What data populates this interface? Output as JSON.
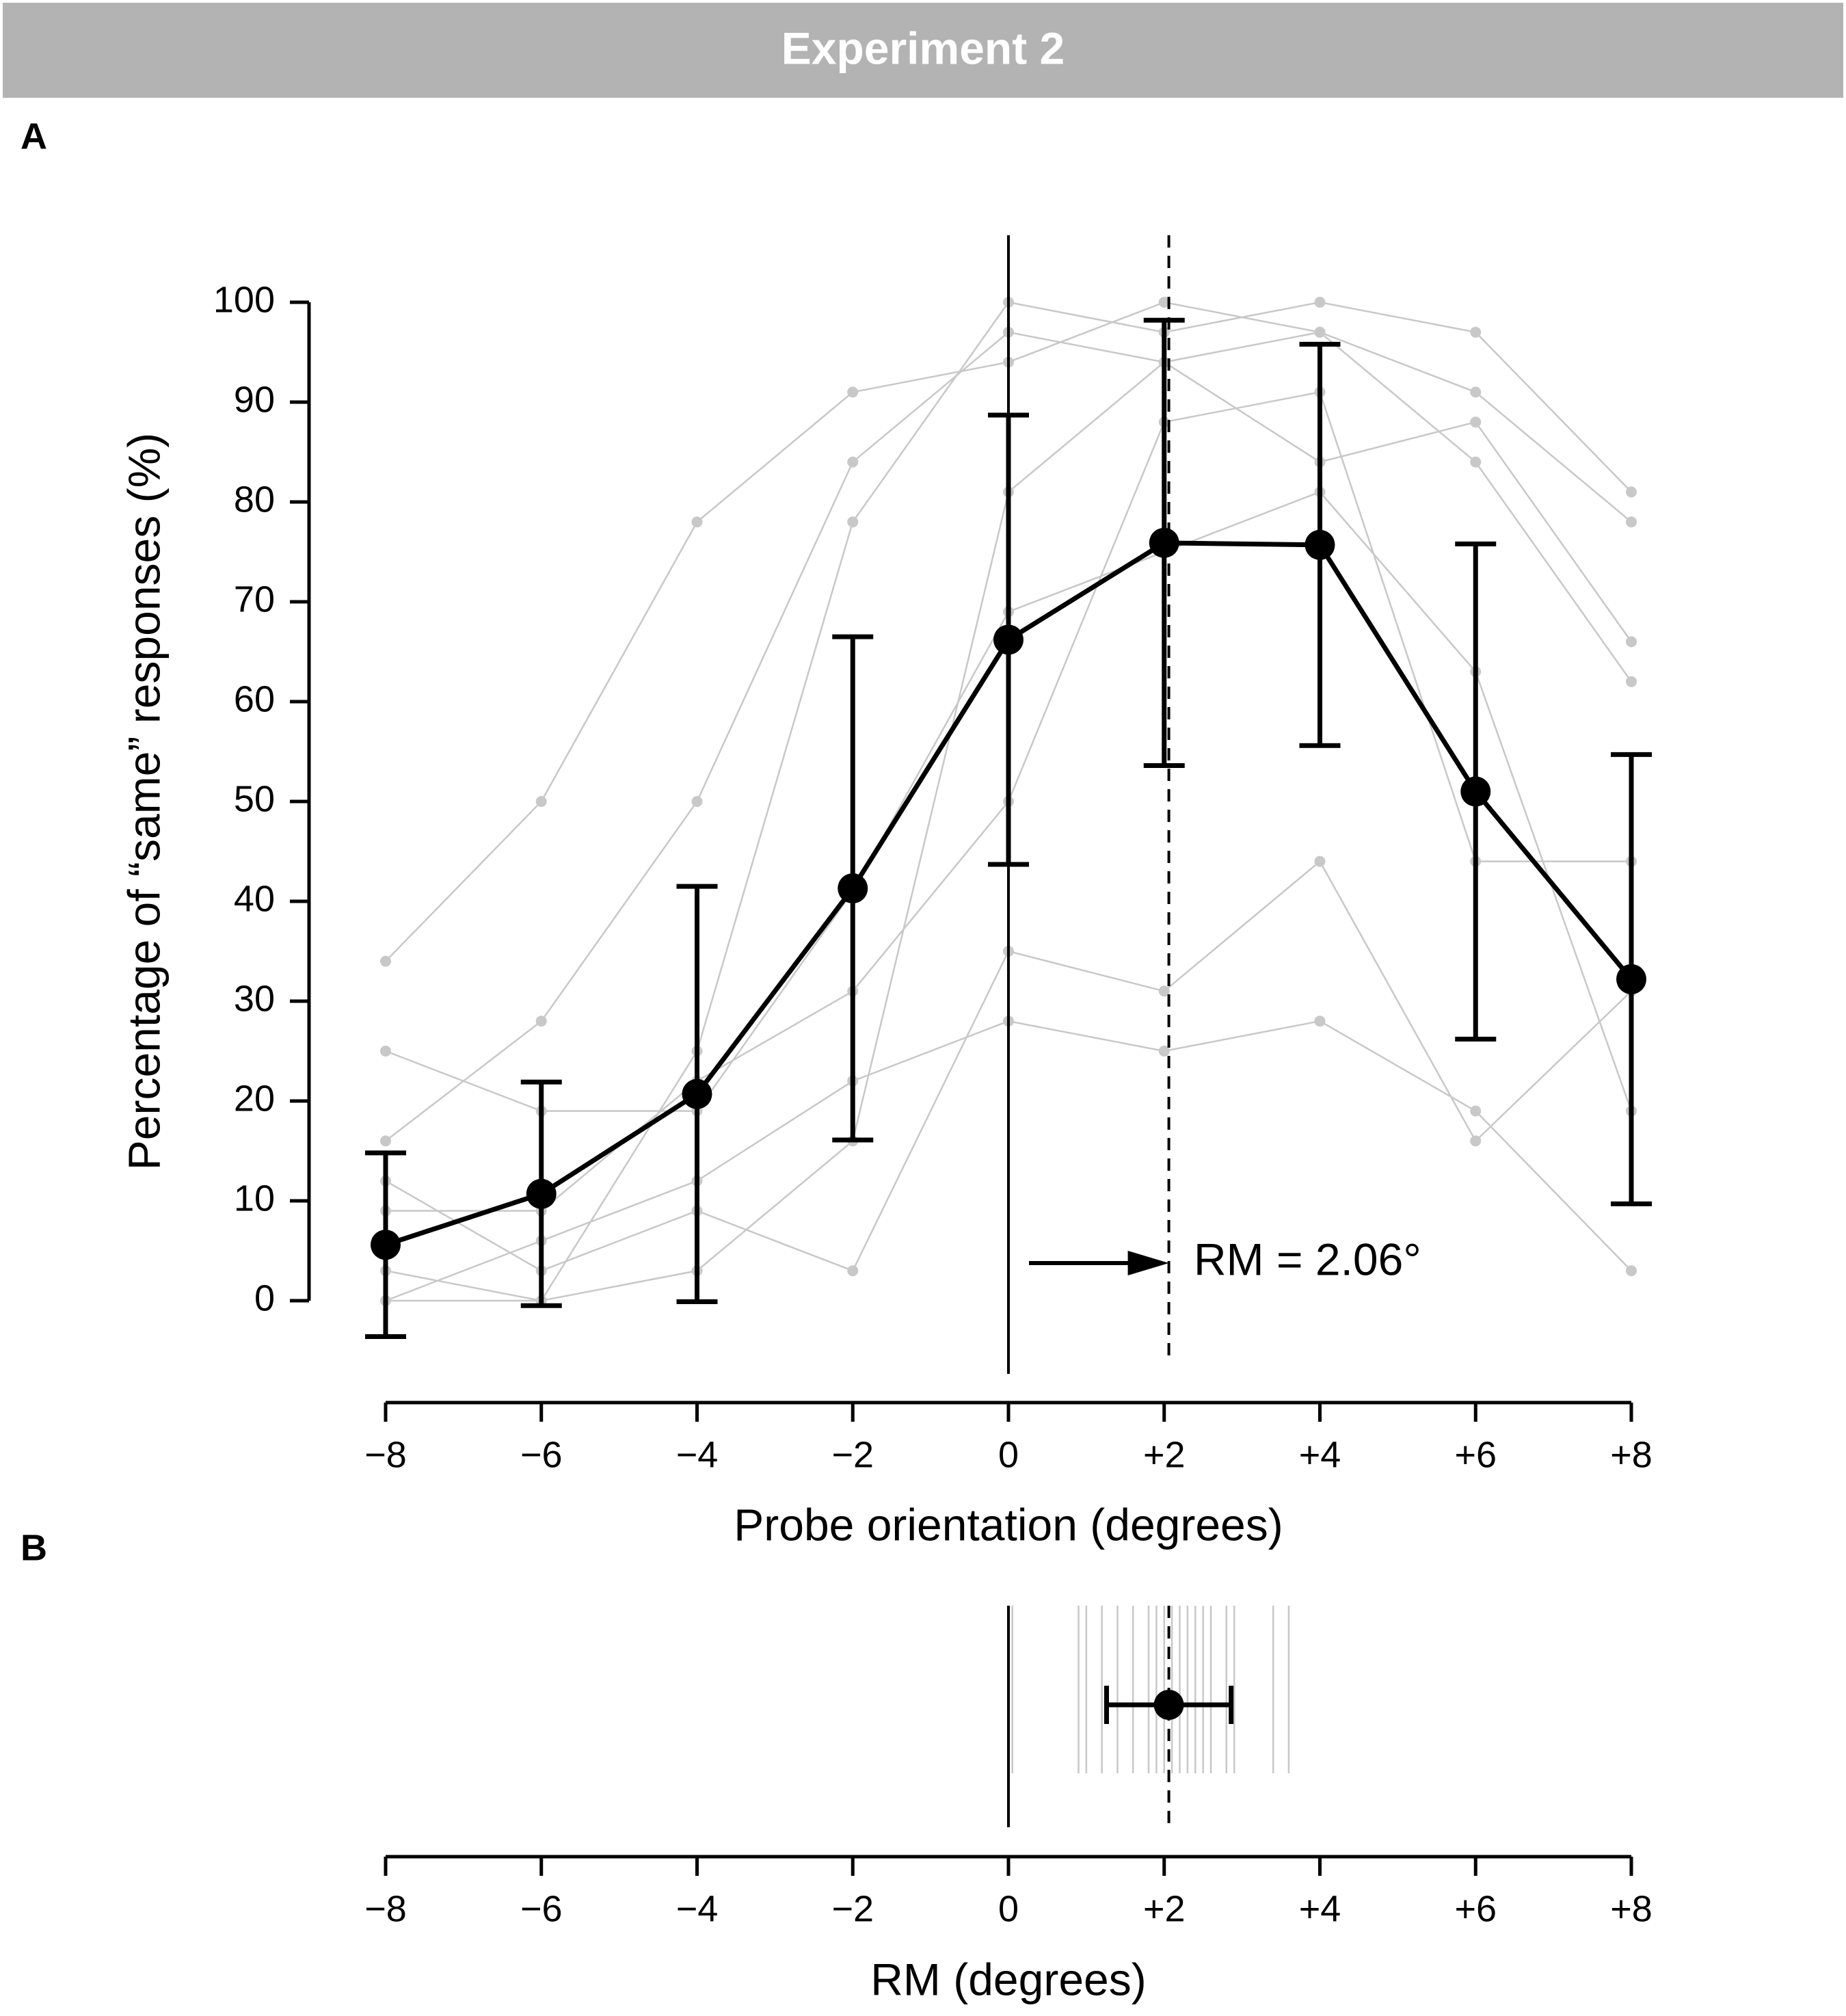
{
  "header": {
    "title": "Experiment 2"
  },
  "chart_data": [
    {
      "type": "line",
      "panel": "A",
      "x": [
        -8,
        -6,
        -4,
        -2,
        0,
        2,
        4,
        6,
        8
      ],
      "values": [
        5.6,
        10.7,
        20.7,
        41.3,
        66.2,
        75.9,
        75.7,
        51.0,
        32.2
      ],
      "errors": [
        9.2,
        11.2,
        20.8,
        25.2,
        22.5,
        22.3,
        20.1,
        24.8,
        22.5
      ],
      "color": "#000000",
      "individual": [
        [
          0,
          0,
          25,
          78,
          100,
          97,
          100,
          97,
          81
        ],
        [
          34,
          50,
          78,
          91,
          94,
          100,
          97,
          91,
          78
        ],
        [
          16,
          28,
          50,
          84,
          97,
          94,
          84,
          88,
          66
        ],
        [
          0,
          6,
          12,
          22,
          28,
          25,
          28,
          19,
          3
        ],
        [
          9,
          9,
          22,
          31,
          50,
          88,
          91,
          44,
          44
        ],
        [
          25,
          19,
          19,
          41,
          69,
          75,
          81,
          63,
          19
        ],
        [
          3,
          0,
          3,
          16,
          81,
          94,
          97,
          84,
          62
        ],
        [
          12,
          3,
          9,
          3,
          35,
          31,
          44,
          16,
          31
        ]
      ],
      "individual_color": "#c8c8c8",
      "rm": 2.06,
      "annotation": "RM = 2.06°",
      "xlabel": "Probe orientation (degrees)",
      "ylabel": "Percentage of “same” responses (%)",
      "xlim": [
        -8,
        8
      ],
      "ylim": [
        0,
        100
      ],
      "xticks": [
        {
          "value": -8,
          "label": "−8"
        },
        {
          "value": -6,
          "label": "−6"
        },
        {
          "value": -4,
          "label": "−4"
        },
        {
          "value": -2,
          "label": "−2"
        },
        0,
        {
          "value": 2,
          "label": "+2"
        },
        {
          "value": 4,
          "label": "+4"
        },
        {
          "value": 6,
          "label": "+6"
        },
        {
          "value": 8,
          "label": "+8"
        }
      ],
      "yticks": [
        0,
        10,
        20,
        30,
        40,
        50,
        60,
        70,
        80,
        90,
        100
      ]
    },
    {
      "type": "interval",
      "panel": "B",
      "mean": 2.06,
      "error": 0.8,
      "color": "#000000",
      "individual": [
        0.05,
        0.9,
        1.0,
        1.2,
        1.4,
        1.6,
        1.8,
        1.9,
        2.0,
        2.1,
        2.2,
        2.3,
        2.4,
        2.5,
        2.6,
        2.8,
        2.9,
        3.4,
        3.6
      ],
      "individual_color": "#c8c8c8",
      "xlabel": "RM (degrees)",
      "xlim": [
        -8,
        8
      ],
      "xticks": [
        {
          "value": -8,
          "label": "−8"
        },
        {
          "value": -6,
          "label": "−6"
        },
        {
          "value": -4,
          "label": "−4"
        },
        {
          "value": -2,
          "label": "−2"
        },
        0,
        {
          "value": 2,
          "label": "+2"
        },
        {
          "value": 4,
          "label": "+4"
        },
        {
          "value": 6,
          "label": "+6"
        },
        {
          "value": 8,
          "label": "+8"
        }
      ]
    }
  ]
}
